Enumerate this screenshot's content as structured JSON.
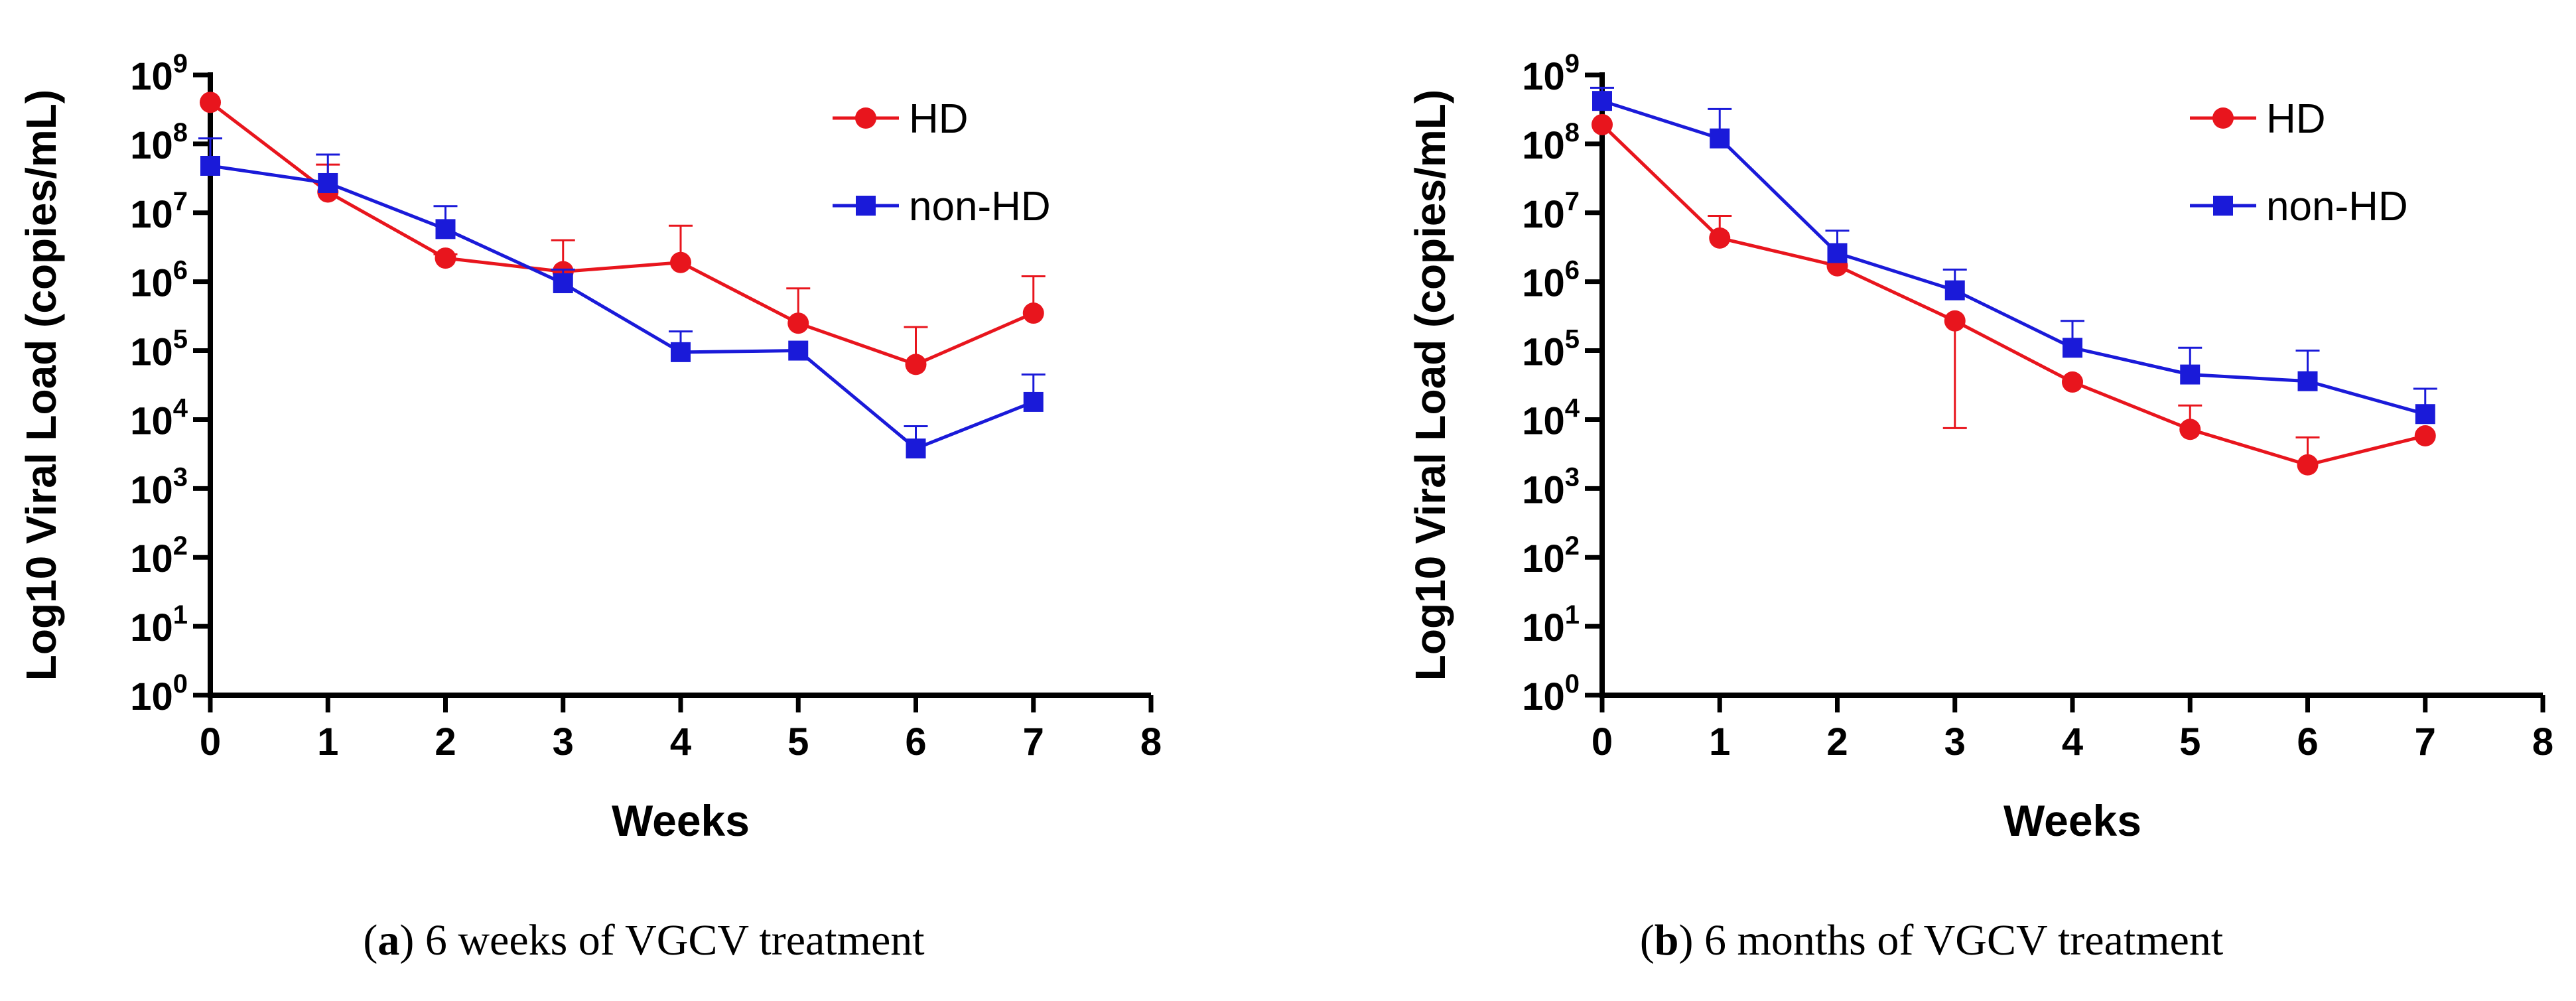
{
  "chart_data": [
    {
      "type": "line",
      "xlabel": "Weeks",
      "ylabel": "Log10 Viral Load (copies/mL)",
      "yscale": "log",
      "xlim": [
        0,
        8
      ],
      "ylim_exponents": [
        0,
        9
      ],
      "x_ticks": [
        "0",
        "1",
        "2",
        "3",
        "4",
        "5",
        "6",
        "7",
        "8"
      ],
      "y_tick_base": "10",
      "y_tick_exponents": [
        "0",
        "1",
        "2",
        "3",
        "4",
        "5",
        "6",
        "7",
        "8",
        "9"
      ],
      "legend_position": "top-right",
      "caption_letter": "a",
      "caption_text": "6 weeks of VGCV treatment",
      "series": [
        {
          "name": "HD",
          "color": "#e8151d",
          "marker": "circle",
          "x": [
            0,
            1,
            2,
            3,
            4,
            5,
            6,
            7
          ],
          "y": [
            400000000,
            20000000,
            2200000,
            1400000,
            1900000,
            250000,
            63000,
            350000
          ],
          "err_upper": [
            400000000,
            50000000,
            2500000,
            4000000,
            6500000,
            800000,
            220000,
            1200000
          ]
        },
        {
          "name": "non-HD",
          "color": "#1a1ad9",
          "marker": "square",
          "x": [
            0,
            1,
            2,
            3,
            4,
            5,
            6,
            7
          ],
          "y": [
            48000000,
            27000000,
            5800000,
            950000,
            95000,
            100000,
            3800,
            18000
          ],
          "err_upper": [
            120000000,
            70000000,
            12500000,
            1500000,
            190000,
            100000,
            8000,
            45000
          ]
        }
      ]
    },
    {
      "type": "line",
      "xlabel": "Weeks",
      "ylabel": "Log10 Viral Load (copies/mL)",
      "yscale": "log",
      "xlim": [
        0,
        8
      ],
      "ylim_exponents": [
        0,
        9
      ],
      "x_ticks": [
        "0",
        "1",
        "2",
        "3",
        "4",
        "5",
        "6",
        "7",
        "8"
      ],
      "y_tick_base": "10",
      "y_tick_exponents": [
        "0",
        "1",
        "2",
        "3",
        "4",
        "5",
        "6",
        "7",
        "8",
        "9"
      ],
      "legend_position": "top-right",
      "caption_letter": "b",
      "caption_text": "6 months of VGCV treatment",
      "series": [
        {
          "name": "HD",
          "color": "#e8151d",
          "marker": "circle",
          "x": [
            0,
            1,
            2,
            3,
            4,
            5,
            6,
            7
          ],
          "y": [
            190000000,
            4300000,
            1700000,
            270000,
            35000,
            7200,
            2200,
            5800
          ],
          "err_upper": [
            190000000,
            9000000,
            1700000,
            270000,
            35000,
            16000,
            5500,
            5800
          ],
          "err_lower": [
            null,
            null,
            null,
            7500,
            null,
            null,
            null,
            null
          ]
        },
        {
          "name": "non-HD",
          "color": "#1a1ad9",
          "marker": "square",
          "x": [
            0,
            1,
            2,
            3,
            4,
            5,
            6,
            7
          ],
          "y": [
            420000000,
            120000000,
            2600000,
            750000,
            110000,
            45000,
            36000,
            12000
          ],
          "err_upper": [
            650000000,
            320000000,
            5500000,
            1500000,
            270000,
            110000,
            100000,
            28000
          ]
        }
      ]
    }
  ]
}
